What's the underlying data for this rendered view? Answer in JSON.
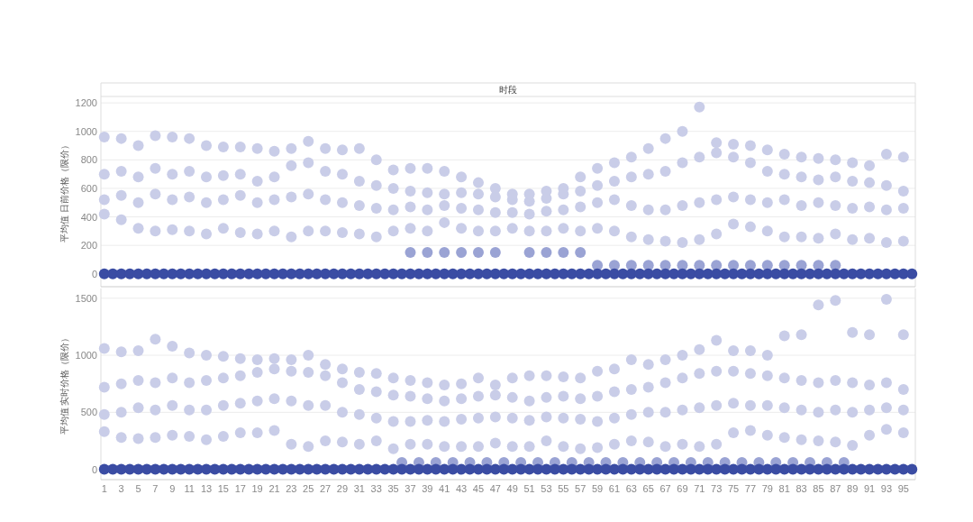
{
  "chart_data": [
    {
      "type": "scatter",
      "title": "时段",
      "ylabel": "平均值 日前价格（限价）",
      "xlim": [
        0.6,
        96.4
      ],
      "ylim": [
        -90,
        1245
      ],
      "xticks": [
        1,
        3,
        5,
        7,
        9,
        11,
        13,
        15,
        17,
        19,
        21,
        23,
        25,
        27,
        29,
        31,
        33,
        35,
        37,
        39,
        41,
        43,
        45,
        47,
        49,
        51,
        53,
        55,
        57,
        59,
        61,
        63,
        65,
        67,
        69,
        71,
        73,
        75,
        77,
        79,
        81,
        83,
        85,
        87,
        89,
        91,
        93,
        95
      ],
      "yticks": [
        0,
        200,
        400,
        600,
        800,
        1000,
        1200
      ],
      "tick_labels": "y",
      "grid": "y",
      "marker": "circle",
      "x": [
        1,
        3,
        5,
        7,
        9,
        11,
        13,
        15,
        17,
        19,
        21,
        23,
        25,
        27,
        29,
        31,
        33,
        35,
        37,
        39,
        41,
        43,
        45,
        47,
        49,
        51,
        53,
        55,
        57,
        59,
        61,
        63,
        65,
        67,
        69,
        71,
        73,
        75,
        77,
        79,
        81,
        83,
        85,
        87,
        89,
        91,
        93,
        95
      ],
      "series": [
        {
          "color": "#c9cde8",
          "values": [
            420,
            380,
            320,
            300,
            310,
            300,
            280,
            320,
            290,
            280,
            300,
            260,
            300,
            300,
            290,
            280,
            260,
            300,
            320,
            300,
            360,
            320,
            300,
            300,
            320,
            300,
            300,
            320,
            300,
            320,
            300,
            260,
            240,
            230,
            220,
            240,
            280,
            350,
            330,
            300,
            260,
            260,
            250,
            280,
            240,
            250,
            220,
            230
          ]
        },
        {
          "color": "#c9cde8",
          "values": [
            520,
            550,
            500,
            560,
            520,
            540,
            500,
            520,
            550,
            500,
            520,
            540,
            560,
            520,
            500,
            480,
            460,
            450,
            470,
            450,
            480,
            460,
            450,
            430,
            430,
            420,
            440,
            450,
            470,
            500,
            520,
            480,
            450,
            450,
            480,
            500,
            520,
            540,
            520,
            500,
            520,
            480,
            500,
            480,
            460,
            470,
            450,
            460
          ]
        },
        {
          "color": "#c9cde8",
          "values": [
            700,
            720,
            680,
            740,
            700,
            720,
            680,
            690,
            700,
            650,
            680,
            760,
            780,
            720,
            700,
            650,
            620,
            600,
            580,
            570,
            560,
            570,
            560,
            540,
            520,
            510,
            530,
            560,
            580,
            620,
            650,
            680,
            700,
            720,
            780,
            820,
            850,
            820,
            780,
            720,
            700,
            680,
            660,
            680,
            650,
            640,
            620,
            580
          ]
        },
        {
          "color": "#c9cde8",
          "values": [
            960,
            950,
            900,
            970,
            960,
            950,
            900,
            890,
            890,
            880,
            860,
            880,
            930,
            880,
            870,
            880,
            800,
            730,
            740,
            740,
            720,
            680,
            640,
            600,
            560,
            560,
            580,
            600,
            680,
            740,
            780,
            820,
            880,
            950,
            1000,
            1170,
            920,
            910,
            900,
            870,
            840,
            820,
            810,
            800,
            780,
            760,
            840,
            820
          ]
        },
        {
          "color": "#9aa3d4",
          "x": [
            37,
            39,
            41,
            43,
            45,
            47,
            51,
            53,
            55,
            57,
            59,
            61,
            63,
            65,
            67,
            69,
            71,
            73,
            75,
            77,
            79,
            81,
            83,
            85,
            87
          ],
          "values": [
            150,
            150,
            150,
            150,
            150,
            150,
            150,
            150,
            150,
            150,
            60,
            60,
            60,
            60,
            60,
            60,
            60,
            60,
            60,
            60,
            60,
            60,
            60,
            60,
            60
          ]
        },
        {
          "color": "#3a4ca3",
          "x": [
            1,
            2,
            3,
            4,
            5,
            6,
            7,
            8,
            9,
            10,
            11,
            12,
            13,
            14,
            15,
            16,
            17,
            18,
            19,
            20,
            21,
            22,
            23,
            24,
            25,
            26,
            27,
            28,
            29,
            30,
            31,
            32,
            33,
            34,
            35,
            36,
            37,
            38,
            39,
            40,
            41,
            42,
            43,
            44,
            45,
            46,
            47,
            48,
            49,
            50,
            51,
            52,
            53,
            54,
            55,
            56,
            57,
            58,
            59,
            60,
            61,
            62,
            63,
            64,
            65,
            66,
            67,
            68,
            69,
            70,
            71,
            72,
            73,
            74,
            75,
            76,
            77,
            78,
            79,
            80,
            81,
            82,
            83,
            84,
            85,
            86,
            87,
            88,
            89,
            90,
            91,
            92,
            93,
            94,
            95,
            96
          ],
          "values": [
            0,
            0,
            0,
            0,
            0,
            0,
            0,
            0,
            0,
            0,
            0,
            0,
            0,
            0,
            0,
            0,
            0,
            0,
            0,
            0,
            0,
            0,
            0,
            0,
            0,
            0,
            0,
            0,
            0,
            0,
            0,
            0,
            0,
            0,
            0,
            0,
            0,
            0,
            0,
            0,
            0,
            0,
            0,
            0,
            0,
            0,
            0,
            0,
            0,
            0,
            0,
            0,
            0,
            0,
            0,
            0,
            0,
            0,
            0,
            0,
            0,
            0,
            0,
            0,
            0,
            0,
            0,
            0,
            0,
            0,
            0,
            0,
            0,
            0,
            0,
            0,
            0,
            0,
            0,
            0,
            0,
            0,
            0,
            0,
            0,
            0,
            0,
            0,
            0,
            0,
            0,
            0,
            0,
            0,
            0,
            0
          ]
        }
      ]
    },
    {
      "type": "scatter",
      "ylabel": "平均值 实时价格（限价）",
      "xlim": [
        0.6,
        96.4
      ],
      "ylim": [
        -90,
        1585
      ],
      "xticks": [
        1,
        3,
        5,
        7,
        9,
        11,
        13,
        15,
        17,
        19,
        21,
        23,
        25,
        27,
        29,
        31,
        33,
        35,
        37,
        39,
        41,
        43,
        45,
        47,
        49,
        51,
        53,
        55,
        57,
        59,
        61,
        63,
        65,
        67,
        69,
        71,
        73,
        75,
        77,
        79,
        81,
        83,
        85,
        87,
        89,
        91,
        93,
        95
      ],
      "yticks": [
        0,
        500,
        1000,
        1500
      ],
      "grid": "y",
      "marker": "circle",
      "x": [
        1,
        3,
        5,
        7,
        9,
        11,
        13,
        15,
        17,
        19,
        21,
        23,
        25,
        27,
        29,
        31,
        33,
        35,
        37,
        39,
        41,
        43,
        45,
        47,
        49,
        51,
        53,
        55,
        57,
        59,
        61,
        63,
        65,
        67,
        69,
        71,
        73,
        75,
        77,
        79,
        81,
        83,
        85,
        87,
        89,
        91,
        93,
        95
      ],
      "series": [
        {
          "color": "#c9cde8",
          "values": [
            330,
            280,
            270,
            280,
            300,
            290,
            260,
            290,
            320,
            320,
            340,
            220,
            200,
            250,
            240,
            220,
            250,
            180,
            220,
            220,
            200,
            200,
            200,
            230,
            200,
            200,
            250,
            200,
            180,
            190,
            220,
            250,
            240,
            200,
            220,
            200,
            220,
            320,
            340,
            300,
            280,
            260,
            250,
            240,
            210,
            300,
            350,
            320
          ]
        },
        {
          "color": "#c9cde8",
          "values": [
            480,
            500,
            540,
            520,
            560,
            520,
            520,
            560,
            580,
            600,
            620,
            600,
            560,
            560,
            500,
            480,
            450,
            420,
            420,
            430,
            420,
            440,
            450,
            460,
            450,
            430,
            460,
            450,
            440,
            420,
            450,
            480,
            500,
            500,
            520,
            540,
            560,
            580,
            560,
            560,
            540,
            520,
            500,
            520,
            500,
            520,
            540,
            520
          ]
        },
        {
          "color": "#c9cde8",
          "values": [
            720,
            750,
            780,
            760,
            800,
            760,
            780,
            800,
            820,
            850,
            880,
            860,
            850,
            820,
            760,
            700,
            680,
            650,
            640,
            620,
            600,
            620,
            640,
            650,
            630,
            600,
            630,
            640,
            620,
            640,
            680,
            700,
            720,
            760,
            800,
            840,
            860,
            860,
            840,
            820,
            800,
            780,
            760,
            780,
            760,
            740,
            760,
            700
          ]
        },
        {
          "color": "#c9cde8",
          "values": [
            1060,
            1030,
            1040,
            1140,
            1080,
            1020,
            1000,
            990,
            970,
            960,
            970,
            960,
            1000,
            920,
            880,
            850,
            840,
            800,
            780,
            760,
            740,
            750,
            800,
            740,
            800,
            820,
            820,
            810,
            800,
            860,
            880,
            960,
            920,
            960,
            1000,
            1050,
            1130,
            1040,
            1040,
            1000,
            1170,
            1180,
            1440,
            1480,
            1200,
            1180,
            1490,
            1180
          ]
        },
        {
          "color": "#9aa3d4",
          "x": [
            36,
            38,
            40,
            42,
            44,
            46,
            48,
            50,
            52,
            54,
            56,
            58,
            60,
            62,
            64,
            66,
            68,
            70,
            72,
            74,
            76,
            78,
            80,
            82,
            84,
            86,
            88
          ],
          "values": [
            60,
            60,
            60,
            60,
            60,
            60,
            60,
            60,
            60,
            60,
            60,
            60,
            60,
            60,
            60,
            60,
            60,
            60,
            60,
            60,
            60,
            60,
            60,
            60,
            60,
            60,
            60
          ]
        },
        {
          "color": "#3a4ca3",
          "x": [
            1,
            2,
            3,
            4,
            5,
            6,
            7,
            8,
            9,
            10,
            11,
            12,
            13,
            14,
            15,
            16,
            17,
            18,
            19,
            20,
            21,
            22,
            23,
            24,
            25,
            26,
            27,
            28,
            29,
            30,
            31,
            32,
            33,
            34,
            35,
            36,
            37,
            38,
            39,
            40,
            41,
            42,
            43,
            44,
            45,
            46,
            47,
            48,
            49,
            50,
            51,
            52,
            53,
            54,
            55,
            56,
            57,
            58,
            59,
            60,
            61,
            62,
            63,
            64,
            65,
            66,
            67,
            68,
            69,
            70,
            71,
            72,
            73,
            74,
            75,
            76,
            77,
            78,
            79,
            80,
            81,
            82,
            83,
            84,
            85,
            86,
            87,
            88,
            89,
            90,
            91,
            92,
            93,
            94,
            95,
            96
          ],
          "values": [
            0,
            0,
            0,
            0,
            0,
            0,
            0,
            0,
            0,
            0,
            0,
            0,
            0,
            0,
            0,
            0,
            0,
            0,
            0,
            0,
            0,
            0,
            0,
            0,
            0,
            0,
            0,
            0,
            0,
            0,
            0,
            0,
            0,
            0,
            0,
            0,
            0,
            0,
            0,
            0,
            0,
            0,
            0,
            0,
            0,
            0,
            0,
            0,
            0,
            0,
            0,
            0,
            0,
            0,
            0,
            0,
            0,
            0,
            0,
            0,
            0,
            0,
            0,
            0,
            0,
            0,
            0,
            0,
            0,
            0,
            0,
            0,
            0,
            0,
            0,
            0,
            0,
            0,
            0,
            0,
            0,
            0,
            0,
            0,
            0,
            0,
            0,
            0,
            0,
            0,
            0,
            0,
            0,
            0,
            0,
            0
          ]
        }
      ]
    }
  ]
}
